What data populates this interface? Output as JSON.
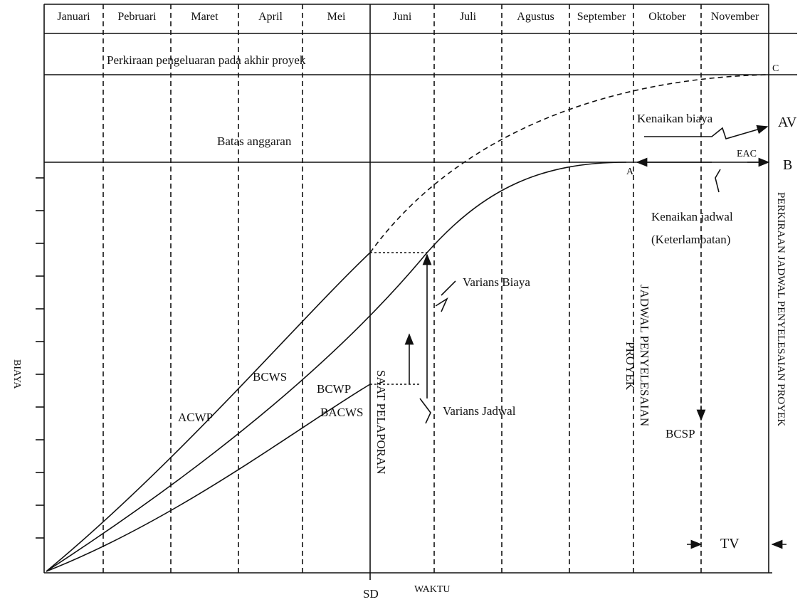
{
  "months": [
    "Januari",
    "Pebruari",
    "Maret",
    "April",
    "Mei",
    "Juni",
    "Juli",
    "Agustus",
    "September",
    "Oktober",
    "November"
  ],
  "labels": {
    "forecast_line": "Perkiraan pengeluaran pada akhir proyek",
    "budget_line": "Batas anggaran",
    "cost_increase": "Kenaikan biaya",
    "av": "AV",
    "eac": "EAC",
    "b": "B",
    "c": "C",
    "a": "A",
    "schedule_increase": "Kenaikan jadwal",
    "delay": "(Keterlambatan)",
    "cost_variance": "Varians Biaya",
    "schedule_variance": "Varians Jadwal",
    "acwp": "ACWP",
    "bcws": "BCWS",
    "bcwp": "BCWP",
    "bacws": "BACWS",
    "report_time": "SAAT PELAPORAN",
    "completion_schedule": "JADWAL PENYELESAIAN",
    "project": "PROYEK",
    "forecast_completion": "PERKIRAAN JADWAL PENYELESAIAN PROYEK",
    "bcsp": "BCSP",
    "tv": "TV",
    "y_axis": "BIAYA",
    "sd": "SD",
    "x_axis": "WAKTU"
  }
}
